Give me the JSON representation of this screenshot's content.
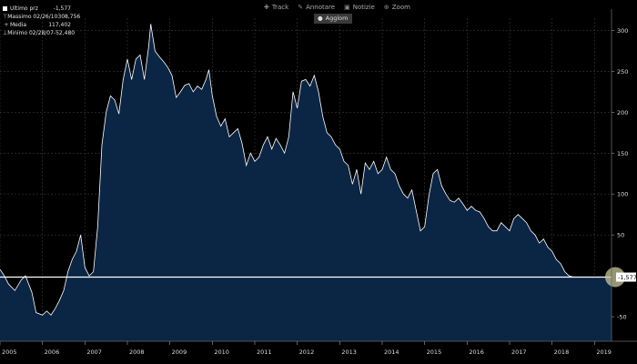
{
  "toolbar": {
    "items": [
      {
        "label": "Track",
        "icon": "crosshair-icon"
      },
      {
        "label": "Annotare",
        "icon": "pencil-icon"
      },
      {
        "label": "Notizie",
        "icon": "news-icon"
      },
      {
        "label": "Zoom",
        "icon": "zoom-icon"
      }
    ],
    "annotation_button": "Agglom"
  },
  "legend": {
    "items": [
      {
        "label": "Ultimo prz",
        "value": "-1,577"
      },
      {
        "label": "Massimo 02/26/10",
        "value": "308,756"
      },
      {
        "label": "Media",
        "value": "117,402"
      },
      {
        "label": "Minimo 02/28/07",
        "value": "-52,480"
      }
    ]
  },
  "chart_data": {
    "type": "area",
    "title": "",
    "xlabel": "",
    "ylabel": "",
    "x_ticks": [
      "2005",
      "2006",
      "2007",
      "2008",
      "2009",
      "2010",
      "2011",
      "2012",
      "2013",
      "2014",
      "2015",
      "2016",
      "2017",
      "2018",
      "2019"
    ],
    "y_ticks": [
      -50,
      50,
      100,
      150,
      200,
      250,
      300
    ],
    "y_tick_labels": [
      "-50",
      "50",
      "100",
      "150",
      "200",
      "250",
      "300"
    ],
    "ylim": [
      -80,
      315
    ],
    "xlim": [
      2005.0,
      2019.4
    ],
    "x_axis_position": "bottom",
    "y_axis_position": "right",
    "grid": true,
    "reference_line": {
      "value": -1.577,
      "label": "-1,577"
    },
    "colors": {
      "fill": "#0b2545",
      "line": "#ffffff",
      "grid": "#3a3a3a",
      "background": "#000000",
      "marker": "#c8c89a"
    },
    "series": [
      {
        "x": [
          2005.0,
          2005.1,
          2005.2,
          2005.35,
          2005.5,
          2005.6,
          2005.75,
          2005.85,
          2006.0,
          2006.1,
          2006.2,
          2006.3,
          2006.4,
          2006.5,
          2006.6,
          2006.7,
          2006.8,
          2006.9,
          2007.0,
          2007.1,
          2007.2,
          2007.3,
          2007.4,
          2007.5,
          2007.6,
          2007.7,
          2007.8,
          2007.9,
          2008.0,
          2008.1,
          2008.2,
          2008.3,
          2008.4,
          2008.5,
          2008.55,
          2008.65,
          2008.75,
          2008.85,
          2008.95,
          2009.05,
          2009.15,
          2009.25,
          2009.35,
          2009.45,
          2009.55,
          2009.65,
          2009.75,
          2009.85,
          2009.92,
          2010.0,
          2010.1,
          2010.2,
          2010.3,
          2010.4,
          2010.5,
          2010.6,
          2010.7,
          2010.8,
          2010.9,
          2011.0,
          2011.1,
          2011.2,
          2011.3,
          2011.4,
          2011.5,
          2011.6,
          2011.7,
          2011.8,
          2011.9,
          2012.0,
          2012.1,
          2012.2,
          2012.3,
          2012.4,
          2012.5,
          2012.6,
          2012.7,
          2012.8,
          2012.9,
          2013.0,
          2013.1,
          2013.2,
          2013.3,
          2013.4,
          2013.5,
          2013.6,
          2013.7,
          2013.8,
          2013.9,
          2014.0,
          2014.1,
          2014.2,
          2014.3,
          2014.4,
          2014.5,
          2014.6,
          2014.7,
          2014.8,
          2014.9,
          2015.0,
          2015.1,
          2015.2,
          2015.3,
          2015.4,
          2015.5,
          2015.6,
          2015.7,
          2015.8,
          2015.9,
          2016.0,
          2016.1,
          2016.2,
          2016.3,
          2016.4,
          2016.5,
          2016.6,
          2016.7,
          2016.8,
          2016.9,
          2017.0,
          2017.1,
          2017.2,
          2017.3,
          2017.4,
          2017.5,
          2017.6,
          2017.7,
          2017.8,
          2017.9,
          2018.0,
          2018.1,
          2018.2,
          2018.3,
          2018.4,
          2018.5,
          2018.6,
          2018.7,
          2018.8,
          2018.9,
          2019.0,
          2019.1,
          2019.2,
          2019.3,
          2019.4
        ],
        "y": [
          8,
          0,
          -10,
          -18,
          -5,
          0,
          -20,
          -45,
          -48,
          -43,
          -48,
          -40,
          -30,
          -18,
          5,
          20,
          30,
          50,
          10,
          0,
          5,
          60,
          160,
          200,
          220,
          215,
          198,
          240,
          265,
          240,
          265,
          270,
          240,
          280,
          308,
          275,
          268,
          262,
          255,
          245,
          218,
          225,
          233,
          235,
          225,
          232,
          228,
          240,
          252,
          220,
          195,
          183,
          192,
          170,
          175,
          180,
          162,
          135,
          150,
          140,
          145,
          160,
          170,
          155,
          168,
          160,
          150,
          170,
          225,
          205,
          238,
          240,
          232,
          245,
          225,
          195,
          175,
          170,
          160,
          155,
          140,
          135,
          112,
          130,
          100,
          138,
          130,
          140,
          125,
          130,
          145,
          130,
          125,
          110,
          100,
          95,
          105,
          80,
          55,
          60,
          98,
          125,
          130,
          110,
          100,
          92,
          90,
          95,
          88,
          80,
          85,
          80,
          78,
          70,
          60,
          55,
          55,
          65,
          60,
          55,
          70,
          75,
          70,
          65,
          55,
          50,
          40,
          45,
          35,
          30,
          20,
          15,
          5,
          0,
          -1.577,
          -1.577,
          -1.577,
          -1.577,
          -1.577,
          -1.577,
          -1.577,
          -1.577,
          -1.577,
          -1.577
        ]
      }
    ]
  }
}
